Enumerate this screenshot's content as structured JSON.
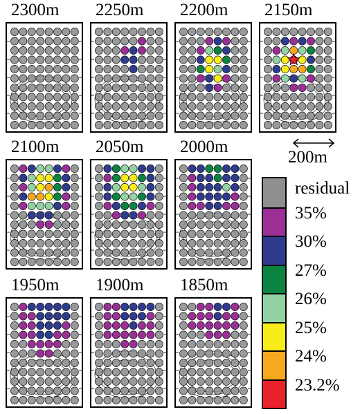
{
  "colors": {
    "residual": "#8e8f90",
    "c35": "#9b2f96",
    "c30": "#2f3b8e",
    "c27": "#0b8442",
    "c26": "#93d2a2",
    "c25": "#f9ec1b",
    "c24": "#f7a91e",
    "c232": "#e8212b"
  },
  "legend": [
    {
      "key": "residual",
      "label": "residual"
    },
    {
      "key": "c35",
      "label": "35%"
    },
    {
      "key": "c30",
      "label": "30%"
    },
    {
      "key": "c27",
      "label": "27%"
    },
    {
      "key": "c26",
      "label": "26%"
    },
    {
      "key": "c25",
      "label": "25%"
    },
    {
      "key": "c24",
      "label": "24%"
    },
    {
      "key": "c232",
      "label": "23.2%"
    }
  ],
  "scale_bar": {
    "label": "200m"
  },
  "panels": [
    {
      "title": "2300m",
      "cells": {}
    },
    {
      "title": "2250m",
      "cells": {
        "1,5": "c35",
        "2,3": "c35",
        "2,4": "c30",
        "2,5": "c35",
        "3,3": "c30",
        "3,4": "c30",
        "4,4": "c30"
      }
    },
    {
      "title": "2200m",
      "cells": {
        "1,3": "c35",
        "1,4": "c30",
        "1,5": "c35",
        "2,2": "c35",
        "2,3": "c26",
        "2,4": "c27",
        "2,5": "c30",
        "3,2": "c30",
        "3,3": "c25",
        "3,4": "c25",
        "3,5": "c27",
        "4,2": "c27",
        "4,3": "c25",
        "4,4": "c26",
        "4,5": "c30",
        "5,2": "c35",
        "5,3": "c30",
        "5,4": "c25",
        "5,5": "c35",
        "6,3": "c30",
        "6,4": "c35"
      }
    },
    {
      "title": "2150m",
      "cells": {
        "1,2": "c30",
        "1,3": "c35",
        "1,4": "c30",
        "1,5": "c35",
        "2,1": "c35",
        "2,2": "c26",
        "2,3": "c24",
        "2,4": "c26",
        "2,5": "c27",
        "3,1": "c26",
        "3,2": "c25",
        "3,3": "c232",
        "3,4": "c25",
        "3,5": "c30",
        "4,1": "c30",
        "4,2": "c25",
        "4,3": "c24",
        "4,4": "c24",
        "4,5": "c27",
        "5,1": "c35",
        "5,2": "c26",
        "5,3": "c30",
        "5,4": "c26",
        "5,5": "c35",
        "6,3": "c35",
        "6,4": "c35"
      },
      "star": "3,3"
    },
    {
      "title": "2100m",
      "cells": {
        "0,1": "c35",
        "0,2": "c30",
        "0,3": "c26",
        "0,4": "c26",
        "0,5": "c30",
        "0,6": "c35",
        "1,1": "c30",
        "1,2": "c26",
        "1,3": "c25",
        "1,4": "c25",
        "1,5": "c27",
        "1,6": "c30",
        "2,1": "c35",
        "2,2": "c26",
        "2,3": "c25",
        "2,4": "c24",
        "2,5": "c27",
        "2,6": "c30",
        "3,1": "c30",
        "3,2": "c24",
        "3,3": "c24",
        "3,4": "c25",
        "3,5": "c27",
        "3,6": "c35",
        "4,1": "c35",
        "4,2": "c26",
        "4,3": "c26",
        "4,4": "c26",
        "4,5": "c30",
        "4,6": "c35",
        "5,2": "c30",
        "5,3": "c30",
        "5,4": "c30",
        "6,3": "c35",
        "6,4": "c35"
      }
    },
    {
      "title": "2050m",
      "cells": {
        "0,1": "c30",
        "0,2": "c27",
        "0,3": "c26",
        "0,4": "c26",
        "0,5": "c30",
        "0,6": "c30",
        "1,1": "c35",
        "1,2": "c27",
        "1,3": "c25",
        "1,4": "c25",
        "1,5": "c27",
        "1,6": "c30",
        "2,1": "c30",
        "2,2": "c26",
        "2,3": "c25",
        "2,4": "c25",
        "2,5": "c26",
        "2,6": "c30",
        "3,1": "c30",
        "3,2": "c27",
        "3,3": "c26",
        "3,4": "c26",
        "3,5": "c27",
        "3,6": "c30",
        "4,1": "c35",
        "4,2": "c30",
        "4,3": "c27",
        "4,4": "c27",
        "4,5": "c30",
        "4,6": "c35",
        "5,2": "c35",
        "5,3": "c30",
        "5,4": "c30",
        "5,5": "c35"
      }
    },
    {
      "title": "2000m",
      "cells": {
        "0,1": "c30",
        "0,2": "c30",
        "0,3": "c27",
        "0,4": "c27",
        "0,5": "c30",
        "0,6": "c30",
        "1,1": "c35",
        "1,2": "c30",
        "1,3": "c30",
        "1,4": "c27",
        "1,5": "c30",
        "1,6": "c30",
        "2,1": "c35",
        "2,2": "c30",
        "2,3": "c30",
        "2,4": "c30",
        "2,5": "c26",
        "2,6": "c30",
        "3,1": "c35",
        "3,2": "c30",
        "3,3": "c30",
        "3,4": "c30",
        "3,5": "c30",
        "3,6": "c35",
        "4,1": "c35",
        "4,2": "c35",
        "4,3": "c30",
        "4,4": "c30",
        "4,5": "c35",
        "4,6": "c35"
      }
    },
    {
      "title": "1950m",
      "cells": {
        "0,1": "c35",
        "0,2": "c30",
        "0,3": "c30",
        "0,4": "c30",
        "0,5": "c30",
        "0,6": "c30",
        "1,1": "c35",
        "1,2": "c35",
        "1,3": "c30",
        "1,4": "c30",
        "1,5": "c30",
        "1,6": "c30",
        "2,1": "c35",
        "2,2": "c35",
        "2,3": "c30",
        "2,4": "c30",
        "2,5": "c30",
        "2,6": "c35",
        "3,1": "c35",
        "3,2": "c35",
        "3,3": "c30",
        "3,4": "c30",
        "3,5": "c35",
        "3,6": "c35",
        "4,2": "c35",
        "4,3": "c35",
        "4,4": "c35",
        "4,5": "c35",
        "5,3": "c35",
        "5,4": "c35"
      }
    },
    {
      "title": "1900m",
      "cells": {
        "0,1": "c35",
        "0,2": "c35",
        "0,3": "c30",
        "0,4": "c30",
        "0,5": "c30",
        "0,6": "c30",
        "1,1": "c35",
        "1,2": "c35",
        "1,3": "c30",
        "1,4": "c30",
        "1,5": "c30",
        "1,6": "c35",
        "2,1": "c35",
        "2,2": "c35",
        "2,3": "c35",
        "2,4": "c30",
        "2,5": "c35",
        "2,6": "c35",
        "3,1": "c35",
        "3,2": "c35",
        "3,3": "c35",
        "3,4": "c35",
        "3,5": "c35",
        "3,6": "c35",
        "4,3": "c35",
        "4,4": "c35"
      }
    },
    {
      "title": "1850m",
      "cells": {
        "0,2": "c35",
        "0,3": "c35",
        "0,4": "c30",
        "0,5": "c30",
        "0,6": "c35",
        "1,1": "c35",
        "1,2": "c35",
        "1,3": "c35",
        "1,4": "c30",
        "1,5": "c35",
        "1,6": "c35",
        "2,1": "c35",
        "2,2": "c35",
        "2,3": "c35",
        "2,4": "c35",
        "2,5": "c35",
        "2,6": "c35",
        "3,3": "c35",
        "3,4": "c35",
        "3,5": "c35"
      }
    }
  ]
}
